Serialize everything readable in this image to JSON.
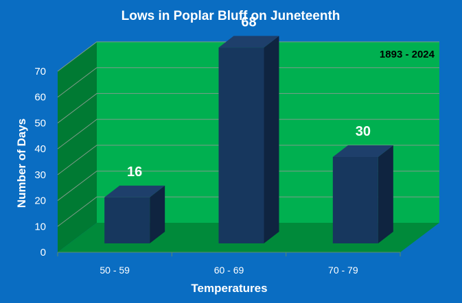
{
  "chart_data": {
    "type": "bar",
    "title": "Lows in Poplar Bluff on Juneteenth",
    "annotation": "1893 - 2024",
    "xlabel": "Temperatures",
    "ylabel": "Number of Days",
    "categories": [
      "50 - 59",
      "60 - 69",
      "70 - 79"
    ],
    "values": [
      16,
      68,
      30
    ],
    "data_labels": [
      "16",
      "68",
      "30"
    ],
    "y_ticks": [
      "0",
      "10",
      "20",
      "30",
      "40",
      "50",
      "60",
      "70"
    ],
    "ylim": [
      0,
      70
    ],
    "grid": true,
    "legend": "none",
    "colors": {
      "background": "#0a6dc2",
      "plot_back": "#00b050",
      "plot_side": "#007a33",
      "plot_floor": "#008a3a",
      "bar_front": "#17375e",
      "bar_top": "#1e3f6b",
      "bar_side": "#0f2440",
      "grid": "#7f9b8a"
    }
  }
}
